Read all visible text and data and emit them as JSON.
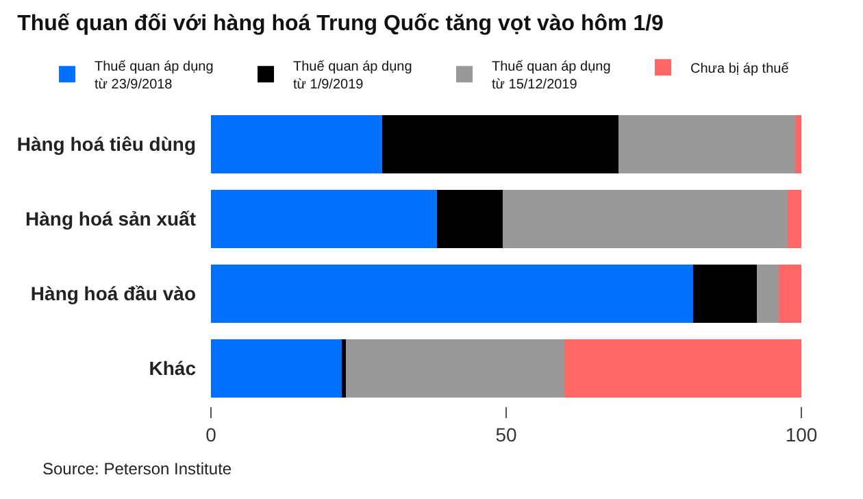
{
  "chart_data": {
    "type": "bar",
    "orientation": "horizontal",
    "stacked": true,
    "title": "Thuế quan đối với hàng hoá Trung Quốc tăng vọt vào hôm 1/9",
    "categories": [
      "Hàng hoá tiêu dùng",
      "Hàng hoá sản xuất",
      "Hàng hoá đầu vào",
      "Khác"
    ],
    "series": [
      {
        "name": "Thuế quan áp dụng\ntừ 23/9/2018",
        "color": "#0070ff",
        "values": [
          29,
          38.3,
          81.7,
          22.1
        ]
      },
      {
        "name": "Thuế quan áp dụng\ntừ 1/9/2019",
        "color": "#000000",
        "values": [
          40,
          11.1,
          10.8,
          0.8
        ]
      },
      {
        "name": "Thuế quan áp dụng\ntừ 15/12/2019",
        "color": "#999999",
        "values": [
          30,
          48.3,
          3.7,
          37
        ]
      },
      {
        "name": "Chưa bị áp thuế",
        "color": "#ff6666",
        "values": [
          1,
          2.3,
          3.8,
          40.1
        ]
      }
    ],
    "xlim": [
      0,
      100
    ],
    "xticks": [
      0,
      50,
      100
    ],
    "grid": false,
    "legend": "top",
    "annotations": [
      "Source: Peterson Institute"
    ]
  }
}
